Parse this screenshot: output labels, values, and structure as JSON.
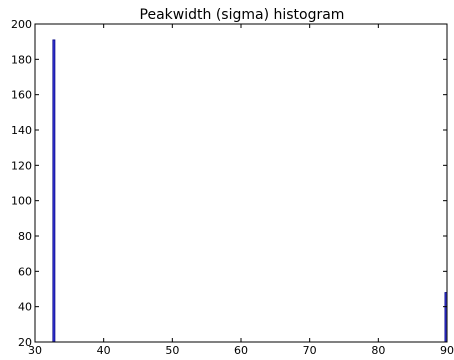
{
  "chart_data": {
    "type": "bar",
    "title": "Peakwidth (sigma) histogram",
    "xlabel": "",
    "ylabel": "",
    "xlim": [
      30,
      90
    ],
    "ylim": [
      20,
      200
    ],
    "x_ticks": [
      30,
      40,
      50,
      60,
      70,
      80,
      90
    ],
    "y_ticks": [
      20,
      40,
      60,
      80,
      100,
      120,
      140,
      160,
      180,
      200
    ],
    "bars": [
      {
        "x_start": 32.6,
        "x_end": 32.9,
        "value": 191
      },
      {
        "x_start": 89.7,
        "x_end": 90.0,
        "value": 48
      }
    ],
    "bar_color": "#3b3bdc",
    "bar_edge_color": "#000080",
    "grid": false
  }
}
